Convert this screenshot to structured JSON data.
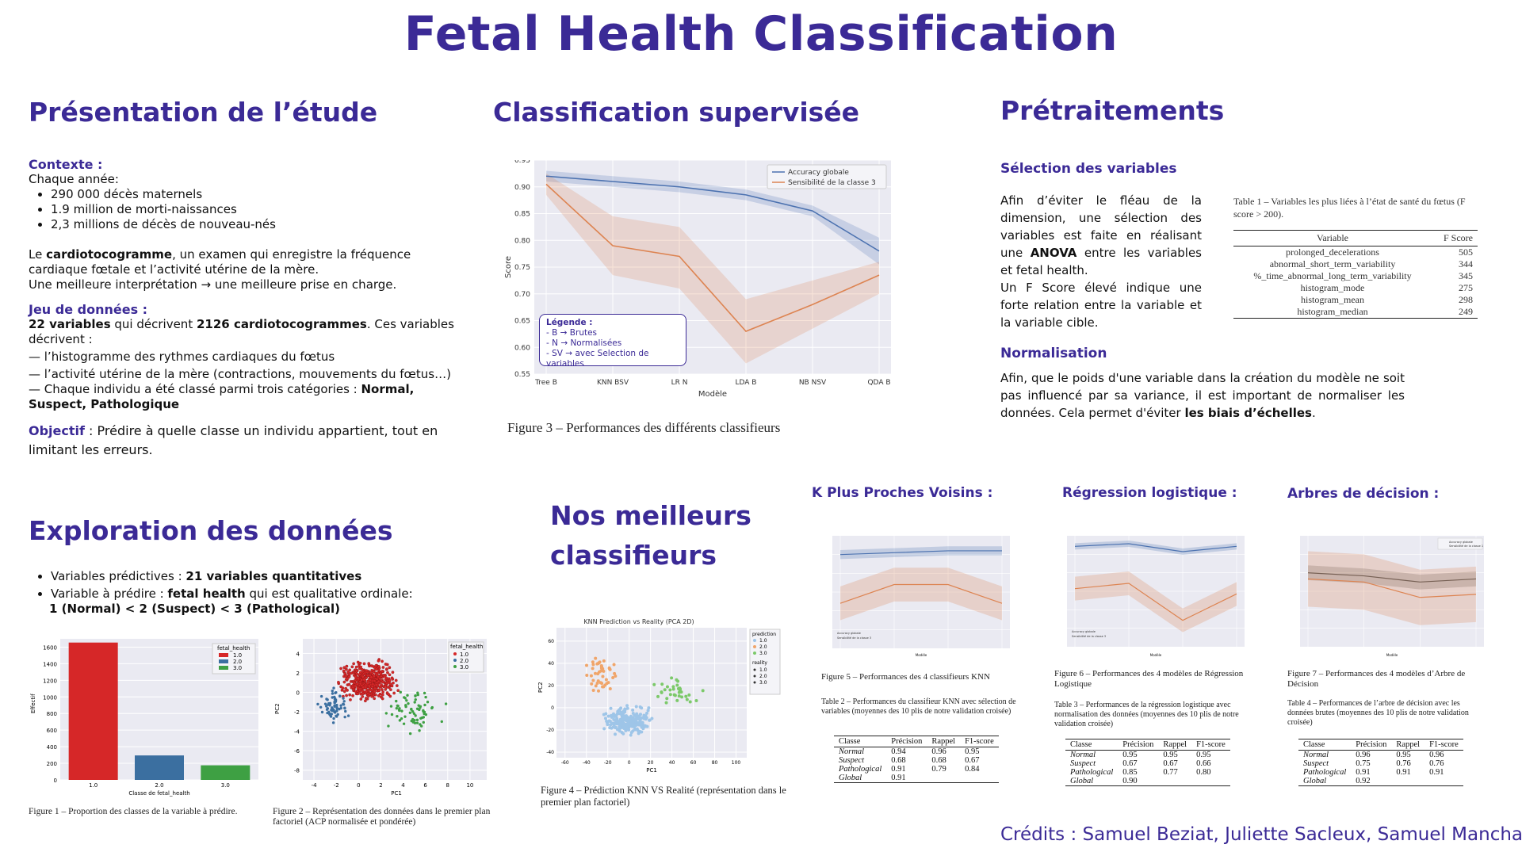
{
  "title": "Fetal Health Classification",
  "credits": "Crédits : Samuel Beziat, Juliette Sacleux, Samuel Manchajm",
  "presentation": {
    "heading": "Présentation de l’étude",
    "contexte_label": "Contexte :",
    "chaque_annee": "Chaque année:",
    "stats": [
      "290 000 décès maternels",
      "1.9 million de morti-naissances",
      "2,3 millions de décès de nouveau-nés"
    ],
    "cardio_pre": "Le ",
    "cardio_bold": "cardiotocogramme",
    "cardio_post": ", un examen qui enregistre la fréquence cardiaque fœtale et l’activité utérine de la mère.",
    "cardio_line2": "Une meilleure interprétation → une meilleure prise en charge.",
    "jeu_label": "Jeu de données :",
    "jeu_b1": "22 variables",
    "jeu_t1": " qui décrivent ",
    "jeu_b2": "2126 cardiotocogrammes",
    "jeu_t2": ". Ces variables décrivent :",
    "jeu_item1": "— l’histogramme des rythmes cardiaques du fœtus",
    "jeu_item2": "— l’activité utérine de la mère (contractions, mouvements du fœtus…)",
    "jeu_item3_pre": "— Chaque individu a été classé parmi trois catégories : ",
    "jeu_item3_bold": "Normal, Suspect, Pathologique",
    "objectif_label": "Objectif",
    "objectif_text": " : Prédire à quelle classe un individu appartient, tout en limitant les erreurs."
  },
  "exploration": {
    "heading": "Exploration des données",
    "b1_pre": "Variables prédictives : ",
    "b1_bold": "21 variables quantitatives",
    "b2_pre": "Variable à prédire : ",
    "b2_bold": "fetal health",
    "b2_post": " qui est qualitative ordinale:",
    "b2_line2": "1 (Normal) < 2 (Suspect) < 3 (Pathological)",
    "fig1_caption": "Figure 1 – Proportion des classes de la variable à prédire.",
    "fig2_caption": "Figure 2 – Représentation des données dans le premier plan factoriel (ACP normalisée et pondérée)"
  },
  "supervised": {
    "heading": "Classification supervisée",
    "fig3_caption": "Figure 3 – Performances des différents classifieurs",
    "legend_title": "Légende :",
    "legend_lines": [
      "- B → Brutes",
      "- N → Normalisées",
      "- SV → avec Selection de variables"
    ]
  },
  "preprocessing": {
    "heading": "Prétraitements",
    "selection_heading": "Sélection des variables",
    "selection_t1": "Afin d’éviter le fléau de la dimension, une sélection des variables est faite en réalisant une ",
    "selection_bold": "ANOVA",
    "selection_t2": " entre les variables et fetal health.",
    "selection_t3": "Un F Score élevé indique une forte relation entre la variable et la variable cible.",
    "table1_caption": "Table 1 – Variables les plus liées à l’état de santé du fœtus (F score > 200).",
    "table1_headers": [
      "Variable",
      "F Score"
    ],
    "table1_rows": [
      [
        "prolonged_decelerations",
        "505"
      ],
      [
        "abnormal_short_term_variability",
        "344"
      ],
      [
        "%_time_abnormal_long_term_variability",
        "345"
      ],
      [
        "histogram_mode",
        "275"
      ],
      [
        "histogram_mean",
        "298"
      ],
      [
        "histogram_median",
        "249"
      ]
    ],
    "normalisation_heading": "Normalisation",
    "normalisation_t1": "Afin, que le poids d'une variable dans la création du modèle ne soit pas influencé par sa variance, il est important de normaliser les données. Cela permet d'éviter ",
    "normalisation_bold": "les biais d’échelles",
    "normalisation_t2": "."
  },
  "best": {
    "heading_line1": "Nos meilleurs",
    "heading_line2": "classifieurs",
    "fig4_caption": "Figure 4 – Prédiction KNN VS Realité (représentation dans le premier plan factoriel)",
    "knn_heading": "K Plus Proches Voisins :",
    "rl_heading": "Régression logistique :",
    "tree_heading": "Arbres de décision :",
    "fig5_caption": "Figure 5 – Performances des 4 classifieurs KNN",
    "fig6_caption": "Figure 6 – Performances des 4 modèles de Régression Logistique",
    "fig7_caption": "Figure 7 – Performances des 4 modèles d’Arbre de Décision",
    "table2_caption": "Table 2 – Performances du classifieur KNN avec sélection de variables (moyennes des 10 plis de notre validation croisée)",
    "table3_caption": "Table 3 – Performances de la régression logistique avec normalisation des données (moyennes des 10 plis de notre validation croisée)",
    "table4_caption": "Table 4 – Performances de l’arbre de décision avec les données brutes (moyennes des 10 plis de notre validation croisée)",
    "metric_headers": [
      "Classe",
      "Précision",
      "Rappel",
      "F1-score"
    ],
    "table2_rows": [
      [
        "Normal",
        "0.94",
        "0.96",
        "0.95"
      ],
      [
        "Suspect",
        "0.68",
        "0.68",
        "0.67"
      ],
      [
        "Pathological",
        "0.91",
        "0.79",
        "0.84"
      ],
      [
        "Global",
        "0.91",
        "",
        ""
      ]
    ],
    "table3_rows": [
      [
        "Normal",
        "0.95",
        "0.95",
        "0.95"
      ],
      [
        "Suspect",
        "0.67",
        "0.67",
        "0.66"
      ],
      [
        "Pathological",
        "0.85",
        "0.77",
        "0.80"
      ],
      [
        "Global",
        "0.90",
        "",
        ""
      ]
    ],
    "table4_rows": [
      [
        "Normal",
        "0.96",
        "0.95",
        "0.96"
      ],
      [
        "Suspect",
        "0.75",
        "0.76",
        "0.76"
      ],
      [
        "Pathological",
        "0.91",
        "0.91",
        "0.91"
      ],
      [
        "Global",
        "0.92",
        "",
        ""
      ]
    ]
  },
  "colors": {
    "accent": "#3b2a96",
    "blue_series": "#4c72b0",
    "orange_series": "#dd8452",
    "plot_bg": "#eaeaf2"
  },
  "chart_data": [
    {
      "id": "fig3",
      "type": "line",
      "categories": [
        "Tree B",
        "KNN BSV",
        "LR N",
        "LDA B",
        "NB NSV",
        "QDA B"
      ],
      "xlabel": "Modèle",
      "ylabel": "Score",
      "ylim": [
        0.55,
        0.95
      ],
      "yticks": [
        "0.55",
        "0.60",
        "0.65",
        "0.70",
        "0.75",
        "0.80",
        "0.85",
        "0.90",
        "0.95"
      ],
      "legend_placement": "top-right",
      "series": [
        {
          "name": "Accuracy globale",
          "color": "#4c72b0",
          "values": [
            0.92,
            0.91,
            0.9,
            0.885,
            0.855,
            0.78
          ],
          "lower": [
            0.91,
            0.9,
            0.89,
            0.875,
            0.845,
            0.755
          ],
          "upper": [
            0.93,
            0.92,
            0.91,
            0.895,
            0.865,
            0.805
          ]
        },
        {
          "name": "Sensibilité de la classe 3",
          "color": "#dd8452",
          "values": [
            0.905,
            0.79,
            0.77,
            0.63,
            0.68,
            0.735
          ],
          "lower": [
            0.885,
            0.735,
            0.71,
            0.57,
            0.635,
            0.7
          ],
          "upper": [
            0.925,
            0.845,
            0.825,
            0.69,
            0.725,
            0.76
          ]
        }
      ]
    },
    {
      "id": "fig1",
      "type": "bar",
      "categories": [
        "1.0",
        "2.0",
        "3.0"
      ],
      "values": [
        1655,
        295,
        176
      ],
      "colors": [
        "#d62728",
        "#3b6fa0",
        "#3ea043"
      ],
      "xlabel": "Classe de fetal_health",
      "ylabel": "Effectif",
      "ylim": [
        0,
        1700
      ],
      "yticks": [
        "0",
        "200",
        "400",
        "600",
        "800",
        "1000",
        "1200",
        "1400",
        "1600"
      ],
      "legend_title": "fetal_health",
      "legend_placement": "top-right"
    },
    {
      "id": "fig2",
      "type": "scatter",
      "xlabel": "PC1",
      "ylabel": "PC2",
      "xticks": [
        "-4",
        "-2",
        "0",
        "2",
        "4",
        "6",
        "8",
        "10"
      ],
      "yticks": [
        "-8",
        "-6",
        "-4",
        "-2",
        "0",
        "2",
        "4"
      ],
      "legend_title": "fetal_health",
      "legend_labels": [
        "1.0",
        "2.0",
        "3.0"
      ],
      "legend_placement": "top-right"
    },
    {
      "id": "fig4",
      "type": "scatter",
      "title": "KNN Prediction vs Reality (PCA 2D)",
      "xlabel": "PC1",
      "ylabel": "PC2",
      "xticks": [
        "-60",
        "-40",
        "-20",
        "0",
        "20",
        "40",
        "60",
        "80",
        "100"
      ],
      "yticks": [
        "-40",
        "-20",
        "0",
        "20",
        "40",
        "60"
      ],
      "legend_prediction_title": "prediction",
      "legend_reality_title": "reality",
      "legend_labels": [
        "1.0",
        "2.0",
        "3.0"
      ],
      "legend_placement": "right"
    },
    {
      "id": "fig5",
      "type": "line",
      "xlabel": "Modèle",
      "series": [
        {
          "name": "Accuracy globale",
          "values": [
            0.91,
            0.915,
            0.92,
            0.92
          ]
        },
        {
          "name": "Sensibilité de la classe 3",
          "values": [
            0.78,
            0.83,
            0.83,
            0.78
          ]
        }
      ]
    },
    {
      "id": "fig6",
      "type": "line",
      "xlabel": "Modèle",
      "series": [
        {
          "name": "Accuracy globale",
          "values": [
            0.88,
            0.89,
            0.86,
            0.88
          ]
        },
        {
          "name": "Sensibilité de la classe 3",
          "values": [
            0.72,
            0.74,
            0.6,
            0.7
          ]
        }
      ]
    },
    {
      "id": "fig7",
      "type": "line",
      "xlabel": "Modèle",
      "legend_placement": "top-right",
      "series": [
        {
          "name": "Accuracy globale",
          "values": [
            0.92,
            0.915,
            0.905,
            0.91
          ]
        },
        {
          "name": "Sensibilité de la classe 1",
          "values": [
            0.91,
            0.905,
            0.88,
            0.885
          ]
        }
      ]
    }
  ]
}
